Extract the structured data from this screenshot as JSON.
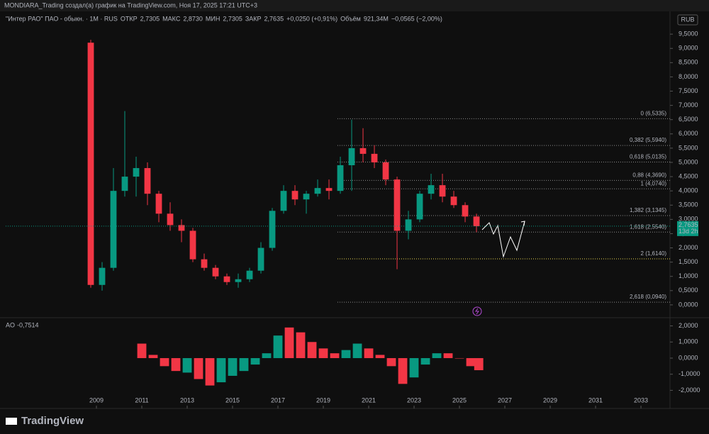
{
  "header": {
    "attribution": "MONDIARA_Trading создал(а) график на TradingView.com, Ноя 17, 2025 17:21 UTC+3",
    "symbol": "\"Интер РАО\" ПАО - обыкн. · 1M · RUS",
    "ohlc": [
      {
        "name": "ОТКР",
        "value": "2,7305"
      },
      {
        "name": "МАКС",
        "value": "2,8730"
      },
      {
        "name": "МИН",
        "value": "2,7305"
      },
      {
        "name": "ЗАКР",
        "value": "2,7635"
      }
    ],
    "change": "+0,0250 (+0,91%)",
    "volume_name": "Объём",
    "volume": "921,34M",
    "volume_change": "−0,0565 (−2,00%)",
    "currency": "RUB"
  },
  "chart_data": [
    {
      "type": "candlestick",
      "x": [
        2008.75,
        2009.25,
        2009.75,
        2010.25,
        2010.75,
        2011.25,
        2011.75,
        2012.25,
        2012.75,
        2013.25,
        2013.75,
        2014.25,
        2014.75,
        2015.25,
        2015.75,
        2016.25,
        2016.75,
        2017.25,
        2017.75,
        2018.25,
        2018.75,
        2019.25,
        2019.75,
        2020.25,
        2020.75,
        2021.25,
        2021.75,
        2022.25,
        2022.75,
        2023.25,
        2023.75,
        2024.25,
        2024.75,
        2025.25,
        2025.75
      ],
      "open": [
        9.2,
        0.7,
        1.3,
        4.0,
        4.5,
        4.8,
        3.9,
        3.2,
        2.8,
        2.6,
        1.6,
        1.3,
        1.0,
        0.8,
        0.9,
        1.2,
        2.0,
        3.3,
        4.0,
        3.7,
        3.9,
        4.1,
        4.0,
        4.9,
        5.5,
        5.3,
        5.0,
        4.4,
        2.6,
        3.0,
        3.9,
        4.2,
        3.8,
        3.5,
        3.1
      ],
      "high": [
        9.3,
        1.5,
        4.8,
        6.8,
        5.2,
        5.0,
        4.0,
        3.6,
        3.0,
        2.7,
        1.8,
        1.4,
        1.1,
        1.1,
        1.3,
        2.2,
        3.4,
        4.2,
        4.2,
        4.0,
        4.4,
        4.4,
        5.2,
        6.5,
        6.2,
        5.6,
        5.1,
        4.5,
        3.3,
        4.0,
        4.6,
        4.6,
        4.0,
        3.6,
        3.2
      ],
      "low": [
        0.6,
        0.5,
        1.2,
        3.8,
        3.8,
        3.5,
        2.9,
        2.6,
        2.2,
        1.5,
        1.2,
        0.9,
        0.7,
        0.6,
        0.8,
        1.1,
        1.9,
        3.2,
        3.5,
        3.2,
        3.8,
        3.7,
        3.9,
        4.0,
        5.0,
        4.8,
        4.2,
        1.25,
        2.3,
        2.9,
        3.7,
        3.6,
        3.4,
        2.9,
        2.55
      ],
      "close": [
        0.7,
        1.3,
        4.0,
        4.5,
        4.8,
        3.9,
        3.2,
        2.8,
        2.6,
        1.6,
        1.3,
        1.0,
        0.8,
        0.9,
        1.2,
        2.0,
        3.3,
        4.0,
        3.7,
        3.9,
        4.1,
        4.0,
        4.9,
        5.5,
        5.3,
        5.0,
        4.4,
        2.6,
        3.0,
        3.9,
        4.2,
        3.8,
        3.5,
        3.1,
        2.76
      ],
      "up_color": "#089981",
      "down_color": "#f23645",
      "xlim": [
        2005,
        2034.28
      ],
      "xticks": [
        2009,
        2011,
        2013,
        2015,
        2017,
        2019,
        2021,
        2023,
        2025,
        2027,
        2029,
        2031,
        2033
      ],
      "ylim": [
        -0.45,
        10.25
      ],
      "yticks": [
        {
          "value": 0,
          "label": "0,0000"
        },
        {
          "value": 0.5,
          "label": "0,5000"
        },
        {
          "value": 1,
          "label": "1,0000"
        },
        {
          "value": 1.5,
          "label": "1,5000"
        },
        {
          "value": 2,
          "label": "2,0000"
        },
        {
          "value": 2.5,
          "label": "2,5000"
        },
        {
          "value": 3,
          "label": "3,0000"
        },
        {
          "value": 3.5,
          "label": "3,5000"
        },
        {
          "value": 4,
          "label": "4,0000"
        },
        {
          "value": 4.5,
          "label": "4,5000"
        },
        {
          "value": 5,
          "label": "5,0000"
        },
        {
          "value": 5.5,
          "label": "5,5000"
        },
        {
          "value": 6,
          "label": "6,0000"
        },
        {
          "value": 6.5,
          "label": "6,5000"
        },
        {
          "value": 7,
          "label": "7,0000"
        },
        {
          "value": 7.5,
          "label": "7,5000"
        },
        {
          "value": 8,
          "label": "8,0000"
        },
        {
          "value": 8.5,
          "label": "8,5000"
        },
        {
          "value": 9,
          "label": "9,0000"
        },
        {
          "value": 9.5,
          "label": "9,5000"
        }
      ],
      "levels": [
        {
          "value": 6.5335,
          "label": "0 (6,5335)",
          "color": "#8a8a8a"
        },
        {
          "value": 5.594,
          "label": "0,382 (5,5940)",
          "color": "#8a8a8a"
        },
        {
          "value": 5.0135,
          "label": "0,618 (5,0135)",
          "color": "#8a8a8a"
        },
        {
          "value": 4.369,
          "label": "0,88 (4,3690)",
          "color": "#8a8a8a"
        },
        {
          "value": 4.074,
          "label": "1 (4,0740)",
          "color": "#8a8a8a"
        },
        {
          "value": 3.1345,
          "label": "1,382 (3,1345)",
          "color": "#8a8a8a"
        },
        {
          "value": 2.554,
          "label": "1,618 (2,5540)",
          "color": "#8a8a8a"
        },
        {
          "value": 1.614,
          "label": "2 (1,6140)",
          "color": "#e8d44d"
        },
        {
          "value": 0.094,
          "label": "2,618 (0,0940)",
          "color": "#8a8a8a"
        }
      ],
      "last_price": {
        "value": 2.7635,
        "label": "2,7635"
      },
      "countdown": "13d 2h"
    },
    {
      "type": "histogram",
      "name": "AO",
      "last_label": "-0,7514",
      "x": [
        2011.0,
        2011.5,
        2012.0,
        2012.5,
        2013.0,
        2013.5,
        2014.0,
        2014.5,
        2015.0,
        2015.5,
        2016.0,
        2016.5,
        2017.0,
        2017.5,
        2018.0,
        2018.5,
        2019.0,
        2019.5,
        2020.0,
        2020.5,
        2021.0,
        2021.5,
        2022.0,
        2022.5,
        2023.0,
        2023.5,
        2024.0,
        2024.5,
        2025.0,
        2025.5,
        2025.85
      ],
      "values": [
        0.9,
        0.2,
        -0.5,
        -0.8,
        -0.9,
        -1.3,
        -1.7,
        -1.5,
        -1.1,
        -0.8,
        -0.4,
        0.3,
        1.4,
        1.9,
        1.6,
        1.0,
        0.6,
        0.3,
        0.5,
        0.9,
        0.6,
        0.2,
        -0.5,
        -1.6,
        -1.2,
        -0.4,
        0.3,
        0.3,
        0.0,
        -0.5,
        -0.75
      ],
      "colors": [
        "#f23645",
        "#f23645",
        "#f23645",
        "#f23645",
        "#089981",
        "#f23645",
        "#f23645",
        "#089981",
        "#089981",
        "#089981",
        "#089981",
        "#089981",
        "#089981",
        "#f23645",
        "#f23645",
        "#f23645",
        "#f23645",
        "#f23645",
        "#089981",
        "#089981",
        "#f23645",
        "#f23645",
        "#f23645",
        "#f23645",
        "#089981",
        "#089981",
        "#089981",
        "#f23645",
        "#f23645",
        "#f23645",
        "#f23645"
      ],
      "ylim": [
        -2.95,
        2.42
      ],
      "yticks": [
        {
          "value": 2,
          "label": "2,0000"
        },
        {
          "value": 1,
          "label": "1,0000"
        },
        {
          "value": 0,
          "label": "0,0000"
        },
        {
          "value": -1,
          "label": "-1,0000"
        },
        {
          "value": -2,
          "label": "-2,0000"
        }
      ]
    }
  ],
  "footer": {
    "brand": "TradingView"
  }
}
